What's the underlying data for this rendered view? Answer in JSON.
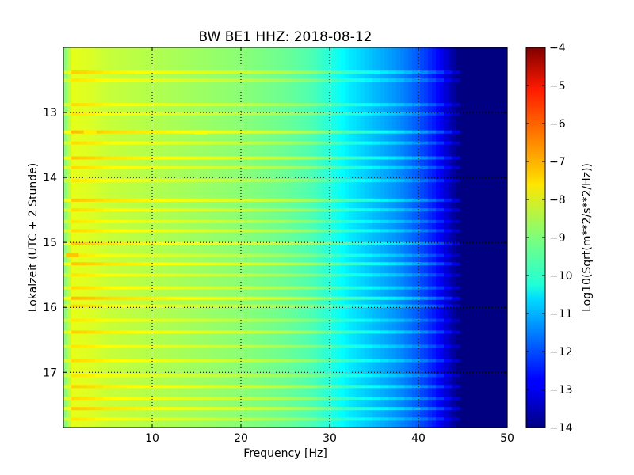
{
  "chart_data": {
    "type": "heatmap",
    "title": "BW BE1 HHZ: 2018-08-12",
    "xlabel": "Frequency [Hz]",
    "ylabel": "Lokalzeit (UTC + 2 Stunde)",
    "xlim": [
      0,
      50
    ],
    "ylim": [
      17.85,
      12.0
    ],
    "x_ticks": [
      10,
      20,
      30,
      40,
      50
    ],
    "y_ticks": [
      13,
      14,
      15,
      16,
      17
    ],
    "grid": true,
    "colormap": "jet",
    "colorbar": {
      "label": "Log10(Sqrt(m**2/s**2/Hz))",
      "range": [
        -14,
        -4
      ],
      "ticks": [
        -4,
        -5,
        -6,
        -7,
        -8,
        -9,
        -10,
        -11,
        -12,
        -13,
        -14
      ]
    },
    "spectral_profile": [
      {
        "frequency": 0.3,
        "value": -8.9
      },
      {
        "frequency": 1,
        "value": -8.0
      },
      {
        "frequency": 3,
        "value": -8.1
      },
      {
        "frequency": 5,
        "value": -8.3
      },
      {
        "frequency": 10,
        "value": -8.5
      },
      {
        "frequency": 15,
        "value": -8.7
      },
      {
        "frequency": 20,
        "value": -8.9
      },
      {
        "frequency": 25,
        "value": -9.2
      },
      {
        "frequency": 28,
        "value": -9.5
      },
      {
        "frequency": 30,
        "value": -9.9
      },
      {
        "frequency": 32,
        "value": -10.4
      },
      {
        "frequency": 35,
        "value": -10.9
      },
      {
        "frequency": 38,
        "value": -11.4
      },
      {
        "frequency": 40,
        "value": -11.9
      },
      {
        "frequency": 42,
        "value": -12.6
      },
      {
        "frequency": 43.5,
        "value": -13.4
      },
      {
        "frequency": 44.5,
        "value": -14.0
      },
      {
        "frequency": 50,
        "value": -14.0
      }
    ],
    "band_lines": [
      {
        "time": 12.38,
        "offset": 0.7
      },
      {
        "time": 12.5,
        "offset": 0.5
      },
      {
        "time": 12.88,
        "offset": 0.6
      },
      {
        "time": 13.02,
        "offset": 0.5
      },
      {
        "time": 13.3,
        "offset": 0.9
      },
      {
        "time": 13.47,
        "offset": 0.6
      },
      {
        "time": 13.7,
        "offset": 0.8
      },
      {
        "time": 13.85,
        "offset": 0.6
      },
      {
        "time": 14.05,
        "offset": 0.5
      },
      {
        "time": 14.35,
        "offset": 0.8
      },
      {
        "time": 14.5,
        "offset": 0.6
      },
      {
        "time": 14.68,
        "offset": 0.5
      },
      {
        "time": 14.82,
        "offset": 0.6
      },
      {
        "time": 15.02,
        "offset": 0.8
      },
      {
        "time": 15.2,
        "offset": 0.5
      },
      {
        "time": 15.33,
        "offset": 0.8
      },
      {
        "time": 15.5,
        "offset": 0.5
      },
      {
        "time": 15.7,
        "offset": 0.6
      },
      {
        "time": 15.86,
        "offset": 0.9
      },
      {
        "time": 15.98,
        "offset": 0.6
      },
      {
        "time": 16.2,
        "offset": 0.5
      },
      {
        "time": 16.38,
        "offset": 0.7
      },
      {
        "time": 16.6,
        "offset": 0.5
      },
      {
        "time": 16.82,
        "offset": 0.6
      },
      {
        "time": 17.05,
        "offset": 0.5
      },
      {
        "time": 17.22,
        "offset": 0.7
      },
      {
        "time": 17.4,
        "offset": 0.6
      },
      {
        "time": 17.56,
        "offset": 0.8
      },
      {
        "time": 17.72,
        "offset": 0.5
      }
    ],
    "hotspots": [
      {
        "time": 13.3,
        "frequency": 3.0,
        "value": -7.6
      },
      {
        "time": 13.3,
        "frequency": 15.5,
        "value": -7.8
      },
      {
        "time": 15.19,
        "frequency": 1.0,
        "value": -7.2
      }
    ]
  }
}
